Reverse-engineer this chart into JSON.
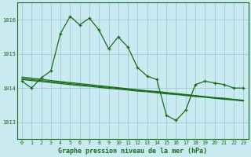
{
  "title": "Graphe pression niveau de la mer (hPa)",
  "background_color": "#c8eaf0",
  "grid_color": "#a0ccd4",
  "line_color": "#1a6b1a",
  "x_ticks": [
    0,
    1,
    2,
    3,
    4,
    5,
    6,
    7,
    8,
    9,
    10,
    11,
    12,
    13,
    14,
    15,
    16,
    17,
    18,
    19,
    20,
    21,
    22,
    23
  ],
  "ylim": [
    1012.5,
    1016.5
  ],
  "yticks": [
    1013,
    1014,
    1015,
    1016
  ],
  "series": {
    "line_jagged": [
      1014.2,
      1014.0,
      1014.3,
      1014.5,
      1015.6,
      1016.1,
      1015.85,
      1016.05,
      1015.7,
      1015.15,
      1015.5,
      1015.2,
      1014.6,
      1014.35,
      1014.25,
      1013.2,
      1013.05,
      1013.35,
      1014.1,
      1014.2,
      1014.15,
      1014.1,
      1014.0,
      1014.0
    ],
    "line_trend1": [
      1014.25,
      1014.22,
      1014.19,
      1014.16,
      1014.13,
      1014.1,
      1014.07,
      1014.05,
      1014.02,
      1013.99,
      1013.97,
      1013.94,
      1013.91,
      1013.89,
      1013.86,
      1013.83,
      1013.81,
      1013.78,
      1013.75,
      1013.73,
      1013.7,
      1013.67,
      1013.65,
      1013.62
    ],
    "line_trend2": [
      1014.28,
      1014.25,
      1014.22,
      1014.19,
      1014.16,
      1014.13,
      1014.1,
      1014.07,
      1014.04,
      1014.02,
      1013.99,
      1013.96,
      1013.93,
      1013.91,
      1013.88,
      1013.85,
      1013.82,
      1013.8,
      1013.77,
      1013.74,
      1013.71,
      1013.69,
      1013.66,
      1013.63
    ],
    "line_trend3": [
      1014.32,
      1014.29,
      1014.26,
      1014.22,
      1014.19,
      1014.16,
      1014.13,
      1014.1,
      1014.07,
      1014.04,
      1014.01,
      1013.98,
      1013.95,
      1013.92,
      1013.9,
      1013.87,
      1013.84,
      1013.81,
      1013.78,
      1013.75,
      1013.72,
      1013.7,
      1013.67,
      1013.64
    ]
  }
}
